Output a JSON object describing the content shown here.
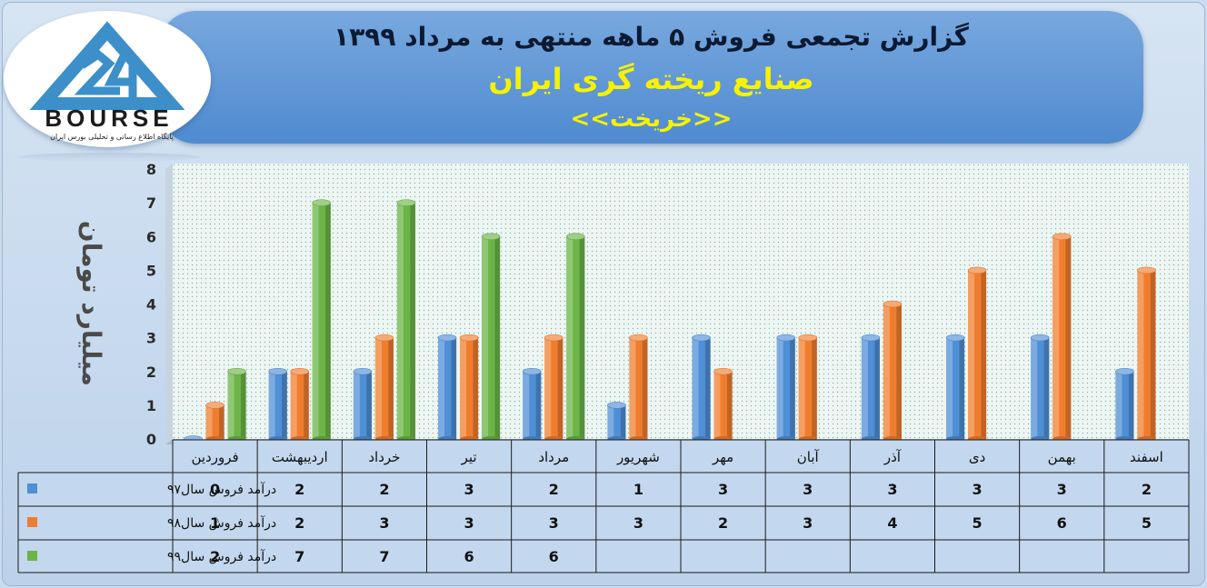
{
  "header": {
    "title": "گزارش تجمعی فروش  ۵ ماهه منتهی به مرداد ۱۳۹۹",
    "company": "صنایع ریخته گری ایران",
    "ticker": "<<خریخت>>"
  },
  "logo": {
    "word": "BOURSE",
    "subtitle": "پایگاه اطلاع رسانی و تحلیلی بورس ایران",
    "icon": "24-bourse-logo"
  },
  "colors": {
    "s97": "#4f8fd6",
    "s98": "#f07d2e",
    "s99": "#6bb446"
  },
  "chart_data": {
    "type": "bar",
    "ylabel": "میلیارد تومان",
    "ylim": [
      0,
      8
    ],
    "yticks": [
      0,
      1,
      2,
      3,
      4,
      5,
      6,
      7,
      8
    ],
    "categories": [
      "فروردین",
      "اردیبهشت",
      "خرداد",
      "تیر",
      "مرداد",
      "شهریور",
      "مهر",
      "آبان",
      "آذر",
      "دی",
      "بهمن",
      "اسفند"
    ],
    "series": [
      {
        "name": "درآمد فروش سال۹۷",
        "values": [
          0,
          2,
          2,
          3,
          2,
          1,
          3,
          3,
          3,
          3,
          3,
          2
        ]
      },
      {
        "name": "درآمد فروش سال۹۸",
        "values": [
          1,
          2,
          3,
          3,
          3,
          3,
          2,
          3,
          4,
          5,
          6,
          5
        ]
      },
      {
        "name": "درآمد فروش سال۹۹",
        "values": [
          2,
          7,
          7,
          6,
          6,
          null,
          null,
          null,
          null,
          null,
          null,
          null
        ]
      }
    ],
    "grid": false,
    "legend": "table-left"
  }
}
